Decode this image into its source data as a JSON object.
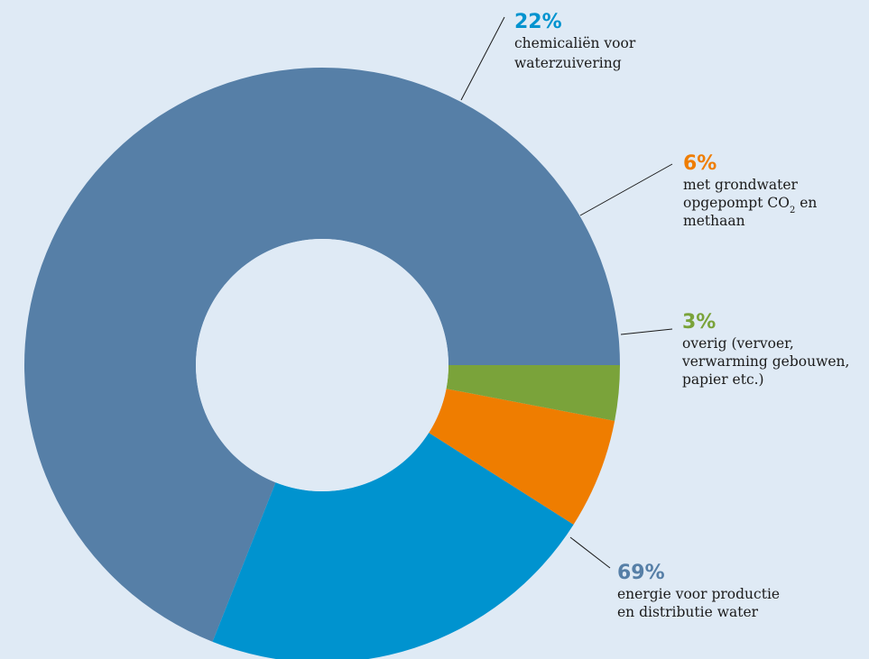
{
  "chart_data": {
    "type": "pie",
    "variant": "donut",
    "start_angle_deg": 0,
    "direction": "counterclockwise",
    "slices": [
      {
        "percent_label": "69%",
        "value": 69,
        "color": "#567fa7",
        "lines": [
          [
            "energie voor productie"
          ],
          [
            "en distributie water"
          ]
        ]
      },
      {
        "percent_label": "22%",
        "value": 22,
        "color": "#0093cf",
        "lines": [
          [
            "chemicaliën voor"
          ],
          [
            "waterzuivering"
          ]
        ]
      },
      {
        "percent_label": "6%",
        "value": 6,
        "color": "#ef7d00",
        "lines": [
          [
            "met grondwater"
          ],
          [
            "opgepompt CO",
            {
              "sub": "2"
            },
            " en"
          ],
          [
            "methaan"
          ]
        ]
      },
      {
        "percent_label": "3%",
        "value": 3,
        "color": "#7aa33a",
        "lines": [
          [
            "overig (vervoer,"
          ],
          [
            "verwarming gebouwen,"
          ],
          [
            "papier etc.)"
          ]
        ]
      }
    ]
  }
}
